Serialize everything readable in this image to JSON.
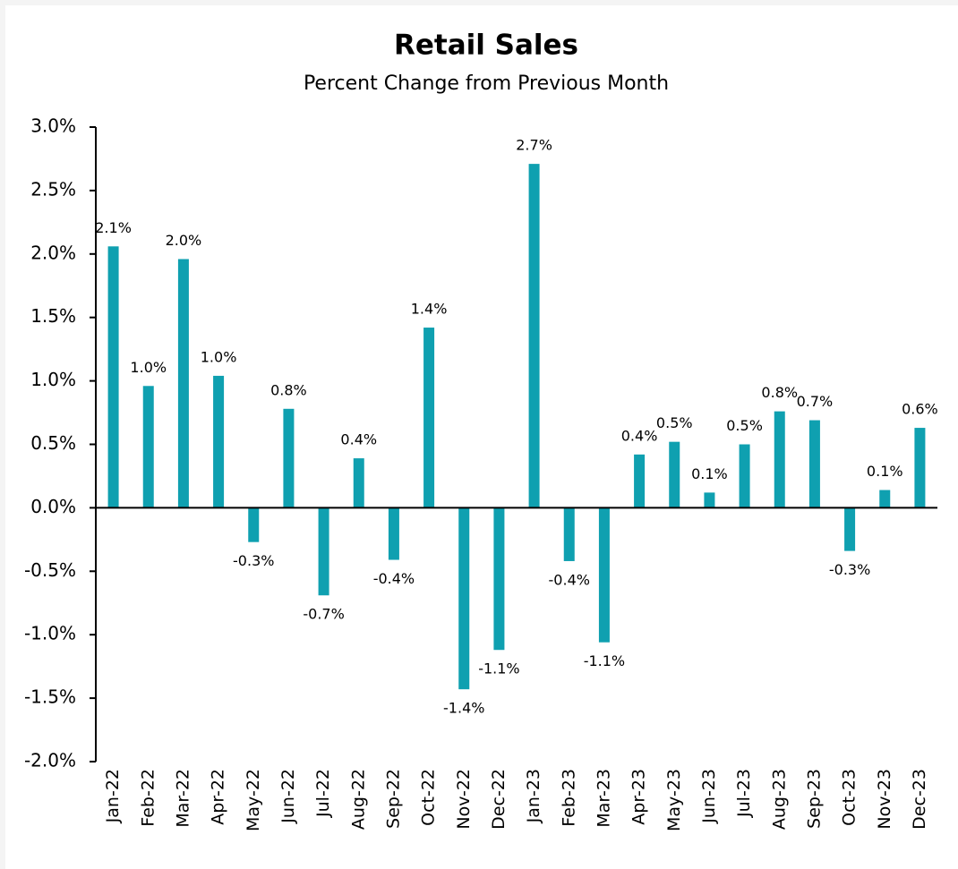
{
  "chart_data": {
    "type": "bar",
    "title": "Retail Sales",
    "subtitle": "Percent Change from Previous Month",
    "categories": [
      "Jan-22",
      "Feb-22",
      "Mar-22",
      "Apr-22",
      "May-22",
      "Jun-22",
      "Jul-22",
      "Aug-22",
      "Sep-22",
      "Oct-22",
      "Nov-22",
      "Dec-22",
      "Jan-23",
      "Feb-23",
      "Mar-23",
      "Apr-23",
      "May-23",
      "Jun-23",
      "Jul-23",
      "Aug-23",
      "Sep-23",
      "Oct-23",
      "Nov-23",
      "Dec-23"
    ],
    "values": [
      2.06,
      0.96,
      1.96,
      1.04,
      -0.27,
      0.78,
      -0.69,
      0.39,
      -0.41,
      1.42,
      -1.43,
      -1.12,
      2.71,
      -0.42,
      -1.06,
      0.42,
      0.52,
      0.12,
      0.5,
      0.76,
      0.69,
      -0.34,
      0.14,
      0.63
    ],
    "value_labels": [
      "2.1%",
      "1.0%",
      "2.0%",
      "1.0%",
      "-0.3%",
      "0.8%",
      "-0.7%",
      "0.4%",
      "-0.4%",
      "1.4%",
      "-1.4%",
      "-1.1%",
      "2.7%",
      "-0.4%",
      "-1.1%",
      "0.4%",
      "0.5%",
      "0.1%",
      "0.5%",
      "0.8%",
      "0.7%",
      "-0.3%",
      "0.1%",
      "0.6%"
    ],
    "color": "#0fa0b0",
    "ylim": [
      -2,
      3
    ],
    "yticks": [
      {
        "value": -2,
        "label": "-2.0%"
      },
      {
        "value": -1.5,
        "label": "-1.5%"
      },
      {
        "value": -1,
        "label": "-1.0%"
      },
      {
        "value": -0.5,
        "label": "-0.5%"
      },
      {
        "value": 0,
        "label": "0.0%"
      },
      {
        "value": 0.5,
        "label": "0.5%"
      },
      {
        "value": 1,
        "label": "1.0%"
      },
      {
        "value": 1.5,
        "label": "1.5%"
      },
      {
        "value": 2,
        "label": "2.0%"
      },
      {
        "value": 2.5,
        "label": "2.5%"
      },
      {
        "value": 3,
        "label": "3.0%"
      }
    ],
    "grid": false
  }
}
